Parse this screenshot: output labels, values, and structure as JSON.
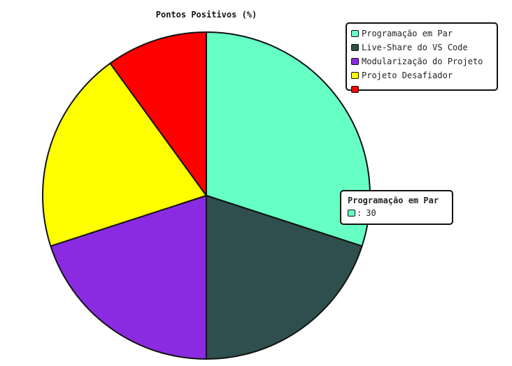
{
  "chart_data": {
    "type": "pie",
    "title": "Pontos Positivos (%)",
    "categories": [
      "Programação em Par",
      "Live-Share do VS Code",
      "Modularização do Projeto",
      "Projeto Desafiador",
      ""
    ],
    "values": [
      30,
      20,
      20,
      20,
      10
    ],
    "colors": [
      "#66ffc4",
      "#2f4f4f",
      "#8a2be2",
      "#ffff00",
      "#ff0000"
    ],
    "legend_position": "top-right"
  },
  "tooltip": {
    "title": "Programação em Par",
    "separator": ":",
    "value": "30",
    "color": "#66ffc4"
  }
}
